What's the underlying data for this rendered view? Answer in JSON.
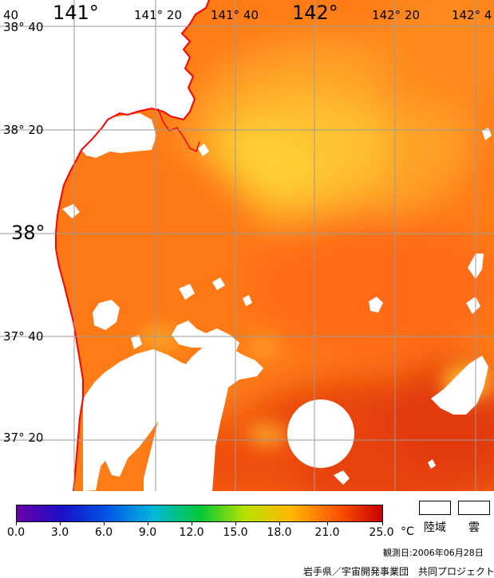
{
  "map": {
    "longitude_labels": [
      "40",
      "141°",
      "141° 20",
      "141° 40",
      "142°",
      "142° 20",
      "142° 4"
    ],
    "latitude_labels": [
      "38° 40",
      "38° 20",
      "38°",
      "37° 40",
      "37° 20"
    ],
    "colors": {
      "coastline": "#ff0000",
      "land": "#ffffff",
      "cloud": "#ffffff",
      "grid": "#9a9a9a",
      "sea_warm": "#ffa52a",
      "sea_hot": "#ff6a12",
      "sea_mid": "#ff8a1a",
      "sea_south": "#e63a0c"
    }
  },
  "colorbar": {
    "ticks": [
      "0.0",
      "3.0",
      "6.0",
      "9.0",
      "12.0",
      "15.0",
      "18.0",
      "21.0",
      "25.0"
    ],
    "unit": "°C",
    "min": 0,
    "max": 25,
    "stops": [
      "#6a00a8",
      "#1a10c8",
      "#0058e8",
      "#00b8d8",
      "#00c838",
      "#b8e000",
      "#ffb800",
      "#ff5800",
      "#c80000"
    ]
  },
  "legend": {
    "land_label": "陸域",
    "cloud_label": "雲"
  },
  "footer": {
    "observation_date": "観測日:2006年06月28日",
    "organization": "岩手県／宇宙開発事業団　共同プロジェクト"
  }
}
